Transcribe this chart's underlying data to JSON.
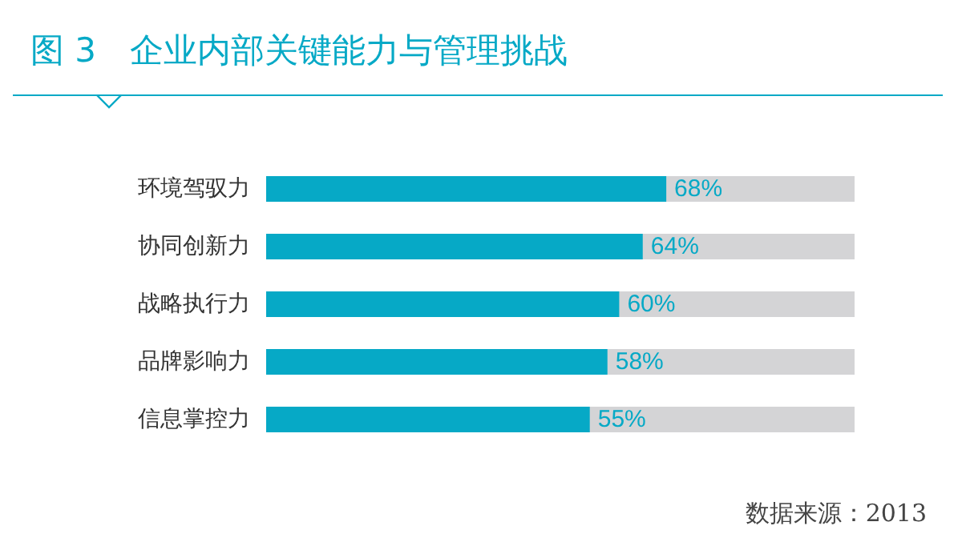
{
  "chart_data": {
    "type": "bar",
    "orientation": "horizontal",
    "title": "图 3　企业内部关键能力与管理挑战",
    "categories": [
      "环境驾驭力",
      "协同创新力",
      "战略执行力",
      "品牌影响力",
      "信息掌控力"
    ],
    "values": [
      68,
      64,
      60,
      58,
      55
    ],
    "value_labels": [
      "68%",
      "64%",
      "60%",
      "58%",
      "55%"
    ],
    "color": "#06a9c6",
    "xlim": [
      0,
      100
    ],
    "tick_labels": "y",
    "grid": false,
    "annotations": [
      "数据来源：2013"
    ]
  }
}
